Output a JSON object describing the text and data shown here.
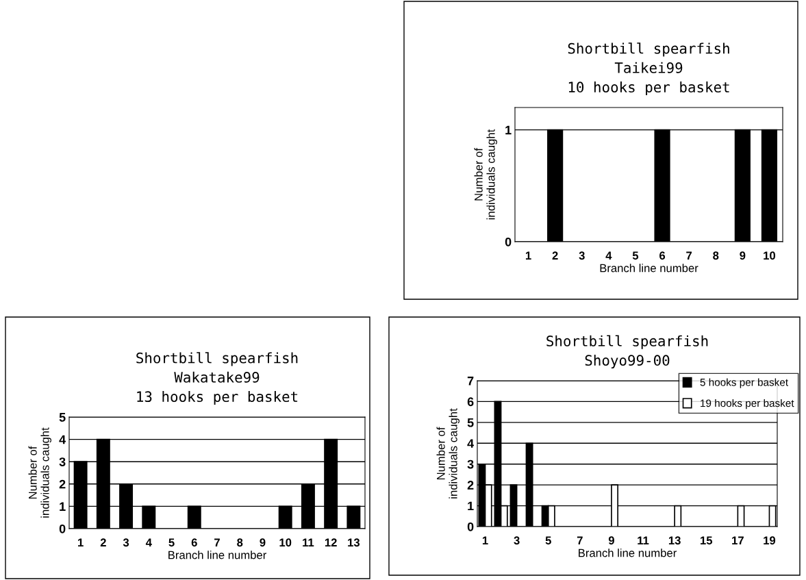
{
  "chart_data": [
    {
      "type": "bar",
      "title": "Shortbill spearfish\nTaikei99\n10 hooks per basket",
      "xlabel": "Branch line number",
      "ylabel": "Number of\nindividuals caught",
      "categories": [
        "1",
        "2",
        "3",
        "4",
        "5",
        "6",
        "7",
        "8",
        "9",
        "10"
      ],
      "series": [
        {
          "color": "#000000",
          "values": [
            0,
            1,
            0,
            0,
            0,
            1,
            0,
            0,
            1,
            1
          ]
        }
      ],
      "ylim": [
        0,
        1.2
      ],
      "yticks": [
        0,
        1
      ],
      "grid": "y"
    },
    {
      "type": "bar",
      "title": "Shortbill spearfish\nWakatake99\n13 hooks per basket",
      "xlabel": "Branch line number",
      "ylabel": "Number of\nindividuals caught",
      "categories": [
        "1",
        "2",
        "3",
        "4",
        "5",
        "6",
        "7",
        "8",
        "9",
        "10",
        "11",
        "12",
        "13"
      ],
      "series": [
        {
          "color": "#000000",
          "values": [
            3,
            4,
            2,
            1,
            0,
            1,
            0,
            0,
            0,
            1,
            2,
            4,
            1
          ]
        }
      ],
      "ylim": [
        0,
        5
      ],
      "yticks": [
        0,
        1,
        2,
        3,
        4,
        5
      ],
      "grid": "y"
    },
    {
      "type": "bar",
      "title": "Shortbill spearfish\nShoyo99-00",
      "xlabel": "Branch line number",
      "ylabel": "Number of\nindividuals caught",
      "categories": [
        "1",
        null,
        "3",
        null,
        "5",
        null,
        "7",
        null,
        "9",
        null,
        "11",
        null,
        "13",
        null,
        "15",
        null,
        "17",
        null,
        "19"
      ],
      "series": [
        {
          "name": "5 hooks per basket",
          "color": "#000000",
          "values": [
            3,
            6,
            2,
            4,
            1,
            0,
            0,
            0,
            0,
            0,
            0,
            0,
            0,
            0,
            0,
            0,
            0,
            0,
            0
          ]
        },
        {
          "name": "19 hooks per basket",
          "color": "#ffffff",
          "values": [
            2,
            1,
            0,
            0,
            1,
            0,
            0,
            0,
            2,
            0,
            0,
            0,
            1,
            0,
            0,
            0,
            1,
            0,
            1
          ]
        }
      ],
      "ylim": [
        0,
        7
      ],
      "yticks": [
        0,
        1,
        2,
        3,
        4,
        5,
        6,
        7
      ],
      "grid": "y",
      "legend": "top right"
    }
  ]
}
